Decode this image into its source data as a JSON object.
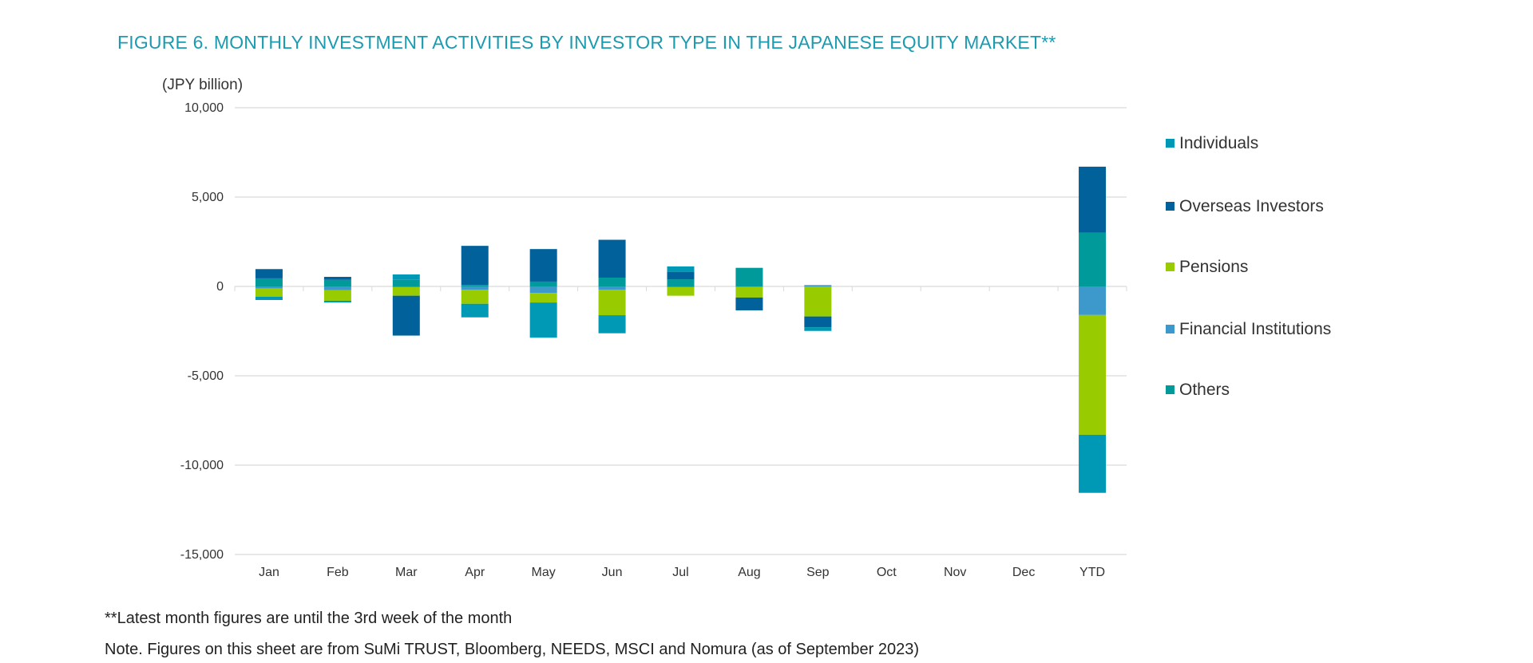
{
  "chart_data": {
    "type": "bar",
    "stacked": true,
    "title": "FIGURE 6. MONTHLY INVESTMENT ACTIVITIES BY INVESTOR TYPE IN THE JAPANESE EQUITY MARKET**",
    "ylabel": "(JPY billion)",
    "xlabel": "",
    "ylim": [
      -15000,
      10000
    ],
    "yticks": [
      10000,
      5000,
      0,
      -5000,
      -10000,
      -15000
    ],
    "ytick_labels": [
      "10,000",
      "5,000",
      "0",
      "-5,000",
      "-10,000",
      "-15,000"
    ],
    "grid": true,
    "legend_position": "right",
    "categories": [
      "Jan",
      "Feb",
      "Mar",
      "Apr",
      "May",
      "Jun",
      "Jul",
      "Aug",
      "Sep",
      "Oct",
      "Nov",
      "Dec",
      "YTD"
    ],
    "series": [
      {
        "name": "Individuals",
        "color": "#0099b5",
        "values": [
          -190,
          -100,
          300,
          -760,
          -1970,
          -1010,
          300,
          0,
          -210,
          null,
          null,
          null,
          -3250
        ]
      },
      {
        "name": "Overseas Investors",
        "color": "#00619b",
        "values": [
          520,
          165,
          -2230,
          2190,
          1820,
          2120,
          420,
          -720,
          -600,
          null,
          null,
          null,
          3700
        ]
      },
      {
        "name": "Pensions",
        "color": "#99cc00",
        "values": [
          -450,
          -600,
          -480,
          -790,
          -540,
          -1430,
          -480,
          -600,
          -1680,
          null,
          null,
          null,
          -6700
        ]
      },
      {
        "name": "Financial Institutions",
        "color": "#3d98cc",
        "values": [
          -120,
          -200,
          -40,
          -180,
          -360,
          -180,
          -40,
          -20,
          75,
          null,
          null,
          null,
          -1600
        ]
      },
      {
        "name": "Others",
        "color": "#009a9a",
        "values": [
          450,
          370,
          370,
          80,
          270,
          490,
          400,
          1040,
          0,
          null,
          null,
          null,
          3000
        ]
      }
    ]
  },
  "notes": {
    "footnote": "**Latest month figures are until the 3rd week of the month",
    "source": "Note. Figures on this sheet are from SuMi TRUST, Bloomberg, NEEDS, MSCI and Nomura (as of September 2023)"
  }
}
